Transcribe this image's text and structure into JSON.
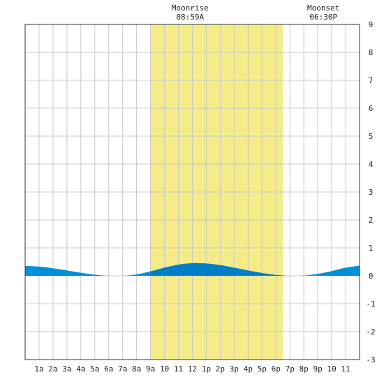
{
  "chart_data": {
    "type": "area",
    "title": "",
    "xlabel": "",
    "ylabel": "",
    "xlim": [
      0,
      24
    ],
    "ylim": [
      -3,
      9
    ],
    "grid": true,
    "x_tick_labels": [
      "1a",
      "2a",
      "3a",
      "4a",
      "5a",
      "6a",
      "7a",
      "8a",
      "9a",
      "10",
      "11",
      "12",
      "1p",
      "2p",
      "3p",
      "4p",
      "5p",
      "6p",
      "7p",
      "8p",
      "9p",
      "10",
      "11"
    ],
    "y_tick_values": [
      -3,
      -2,
      -1,
      0,
      1,
      2,
      3,
      4,
      5,
      6,
      7,
      8,
      9
    ],
    "moon": {
      "rise_hour": 8.98,
      "set_hour": 18.5,
      "rise_label": "Moonrise",
      "rise_time": "08:59A",
      "set_label": "Moonset",
      "set_time": "06:30P"
    },
    "tide_series": {
      "x": [
        0,
        1,
        2,
        3,
        4,
        5,
        6,
        7,
        8,
        9,
        10,
        11,
        12,
        13,
        14,
        15,
        16,
        17,
        18,
        19,
        20,
        21,
        22,
        23,
        24
      ],
      "y": [
        0.35,
        0.33,
        0.27,
        0.19,
        0.11,
        0.04,
        0.0,
        0.0,
        0.05,
        0.16,
        0.29,
        0.4,
        0.45,
        0.44,
        0.38,
        0.29,
        0.19,
        0.1,
        0.03,
        0.0,
        0.01,
        0.07,
        0.17,
        0.29,
        0.36
      ]
    },
    "colors": {
      "grid": "#c8c8c8",
      "moon_band": "#f5ec88",
      "tide_fill": "#0090d8",
      "tide_fill_dark": "#0070b8",
      "axis": "#333333"
    }
  }
}
